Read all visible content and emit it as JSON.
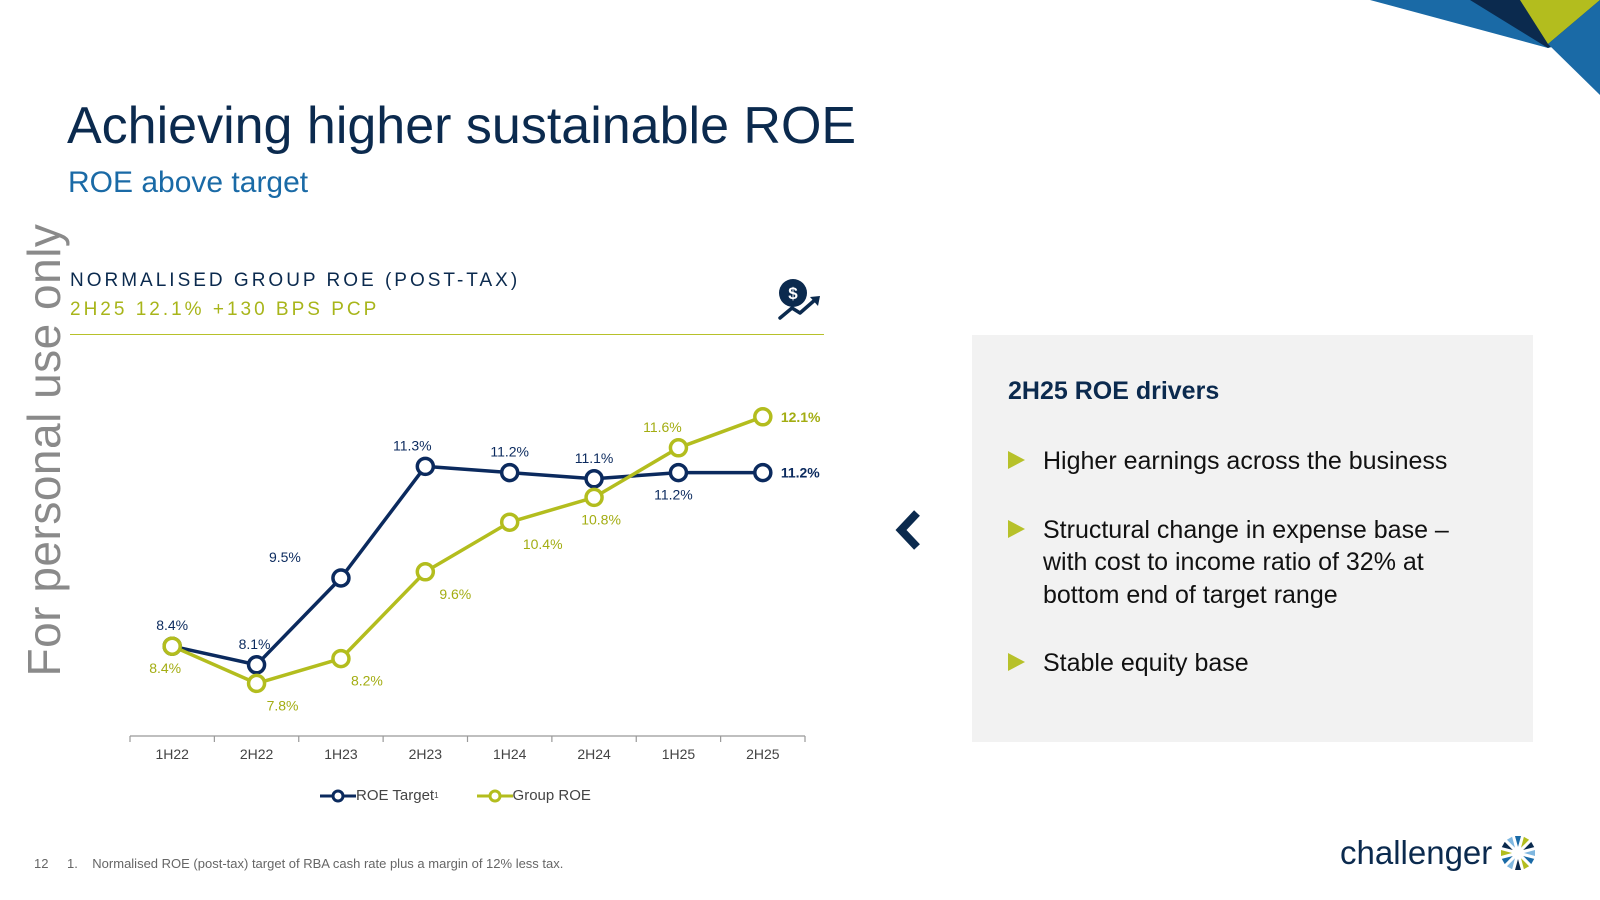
{
  "watermark": "For personal use only",
  "title": "Achieving higher sustainable ROE",
  "subtitle": "ROE above target",
  "chart_panel": {
    "heading": "NORMALISED GROUP ROE (POST-TAX)",
    "subheading": "2H25 12.1% +130 BPS PCP",
    "icon": "money-growth-icon"
  },
  "chart_data": {
    "type": "line",
    "categories": [
      "1H22",
      "2H22",
      "1H23",
      "2H23",
      "1H24",
      "2H24",
      "1H25",
      "2H25"
    ],
    "series": [
      {
        "name": "ROE Target",
        "superscript": "1",
        "values": [
          8.4,
          8.1,
          9.5,
          11.3,
          11.2,
          11.1,
          11.2,
          11.2
        ],
        "labels": [
          "8.4%",
          "8.1%",
          "9.5%",
          "11.3%",
          "11.2%",
          "11.1%",
          "11.2%",
          "11.2%"
        ],
        "color": "#0b2a5e"
      },
      {
        "name": "Group ROE",
        "values": [
          8.4,
          7.8,
          8.2,
          9.6,
          10.4,
          10.8,
          11.6,
          12.1
        ],
        "labels": [
          "8.4%",
          "7.8%",
          "8.2%",
          "9.6%",
          "10.4%",
          "10.8%",
          "11.6%",
          "12.1%"
        ],
        "color": "#b3bd1e"
      }
    ],
    "ylim": [
      7.5,
      12.5
    ],
    "grid": false,
    "legend": "bottom-center"
  },
  "drivers": {
    "heading": "2H25 ROE drivers",
    "items": [
      "Higher earnings across the business",
      "Structural change in expense base – with cost to income ratio of 32% at bottom end of target range",
      "Stable equity base"
    ]
  },
  "footer": {
    "page_number": "12",
    "note": "1.    Normalised ROE (post-tax) target of RBA cash rate plus a margin of 12% less tax."
  },
  "logo": {
    "text": "challenger"
  },
  "colors": {
    "navy": "#0b2a4e",
    "olive": "#b3bd1e",
    "blue": "#1a6aa6"
  }
}
